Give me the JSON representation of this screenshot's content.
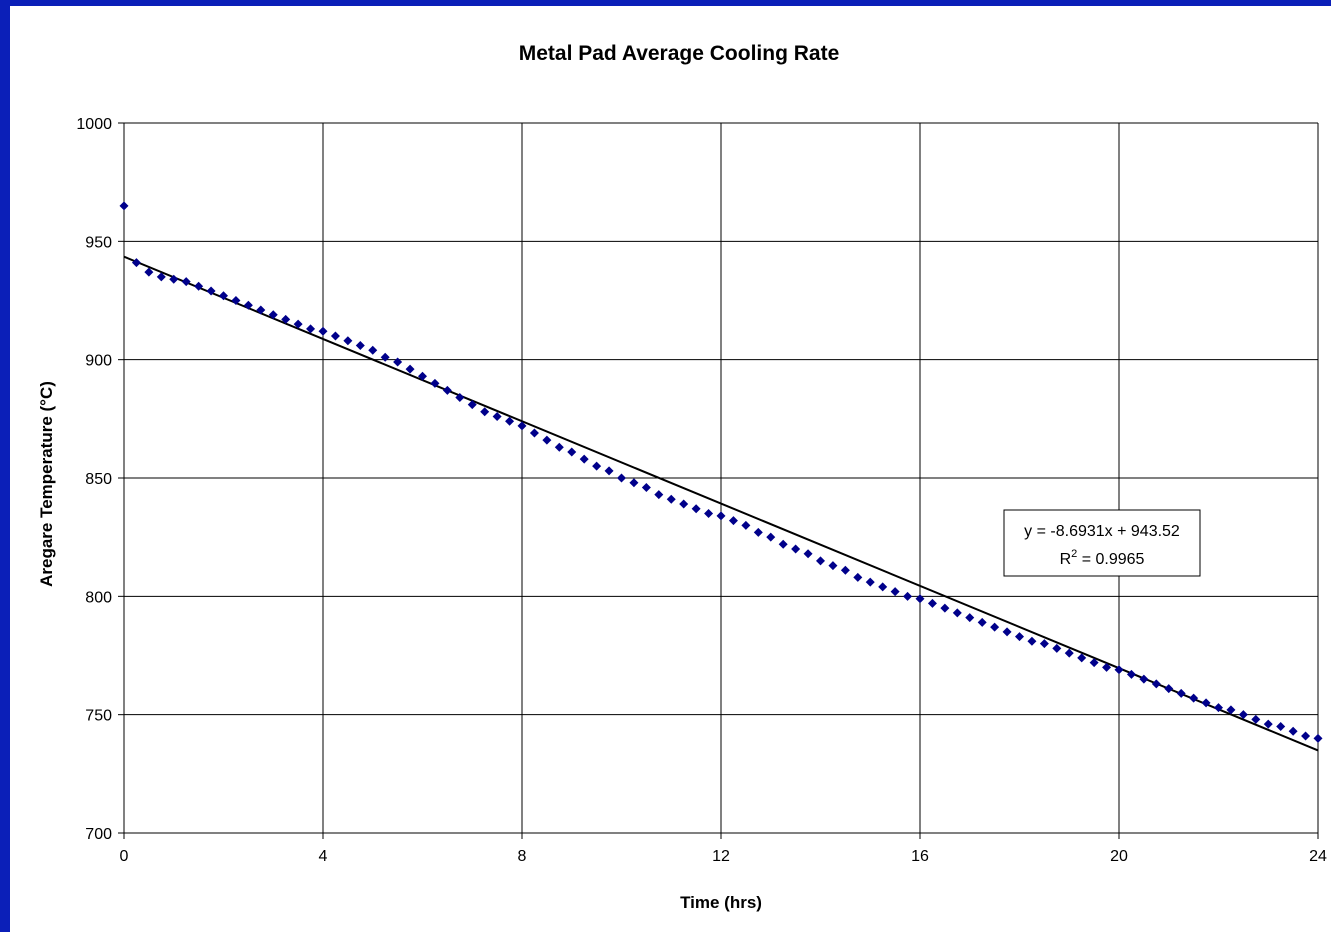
{
  "chart_data": {
    "type": "scatter",
    "title": "Metal Pad Average Cooling Rate",
    "xlabel": "Time (hrs)",
    "ylabel": "Aregare Temperature (°C)",
    "xlim": [
      0,
      24
    ],
    "ylim": [
      700,
      1000
    ],
    "x_ticks": [
      0,
      4,
      8,
      12,
      16,
      20,
      24
    ],
    "y_ticks": [
      700,
      750,
      800,
      850,
      900,
      950,
      1000
    ],
    "grid": true,
    "legend": "none",
    "marker": "diamond",
    "colors": {
      "points": "#00008b",
      "trendline": "#000000",
      "gridlines": "#000000",
      "frame": "#0b1fb8"
    },
    "series": [
      {
        "x": [
          0,
          0.25,
          0.5,
          0.75,
          1,
          1.25,
          1.5,
          1.75,
          2,
          2.25,
          2.5,
          2.75,
          3,
          3.25,
          3.5,
          3.75,
          4,
          4.25,
          4.5,
          4.75,
          5,
          5.25,
          5.5,
          5.75,
          6,
          6.25,
          6.5,
          6.75,
          7,
          7.25,
          7.5,
          7.75,
          8,
          8.25,
          8.5,
          8.75,
          9,
          9.25,
          9.5,
          9.75,
          10,
          10.25,
          10.5,
          10.75,
          11,
          11.25,
          11.5,
          11.75,
          12,
          12.25,
          12.5,
          12.75,
          13,
          13.25,
          13.5,
          13.75,
          14,
          14.25,
          14.5,
          14.75,
          15,
          15.25,
          15.5,
          15.75,
          16,
          16.25,
          16.5,
          16.75,
          17,
          17.25,
          17.5,
          17.75,
          18,
          18.25,
          18.5,
          18.75,
          19,
          19.25,
          19.5,
          19.75,
          20,
          20.25,
          20.5,
          20.75,
          21,
          21.25,
          21.5,
          21.75,
          22,
          22.25,
          22.5,
          22.75,
          23,
          23.25,
          23.5,
          23.75,
          24
        ],
        "y": [
          965,
          941,
          937,
          935,
          934,
          933,
          931,
          929,
          927,
          925,
          923,
          921,
          919,
          917,
          915,
          913,
          912,
          910,
          908,
          906,
          904,
          901,
          899,
          896,
          893,
          890,
          887,
          884,
          881,
          878,
          876,
          874,
          872,
          869,
          866,
          863,
          861,
          858,
          855,
          853,
          850,
          848,
          846,
          843,
          841,
          839,
          837,
          835,
          834,
          832,
          830,
          827,
          825,
          822,
          820,
          818,
          815,
          813,
          811,
          808,
          806,
          804,
          802,
          800,
          799,
          797,
          795,
          793,
          791,
          789,
          787,
          785,
          783,
          781,
          780,
          778,
          776,
          774,
          772,
          770,
          769,
          767,
          765,
          763,
          761,
          759,
          757,
          755,
          753,
          752,
          750,
          748,
          746,
          745,
          743,
          741,
          740
        ]
      }
    ],
    "trendline": {
      "slope": -8.6931,
      "intercept": 943.52,
      "x_range": [
        0,
        24
      ]
    },
    "annotations": {
      "equation": "y = -8.6931x + 943.52",
      "r_squared_prefix": "R",
      "r_squared_sup": "2",
      "r_squared_value": " = 0.9965"
    }
  }
}
